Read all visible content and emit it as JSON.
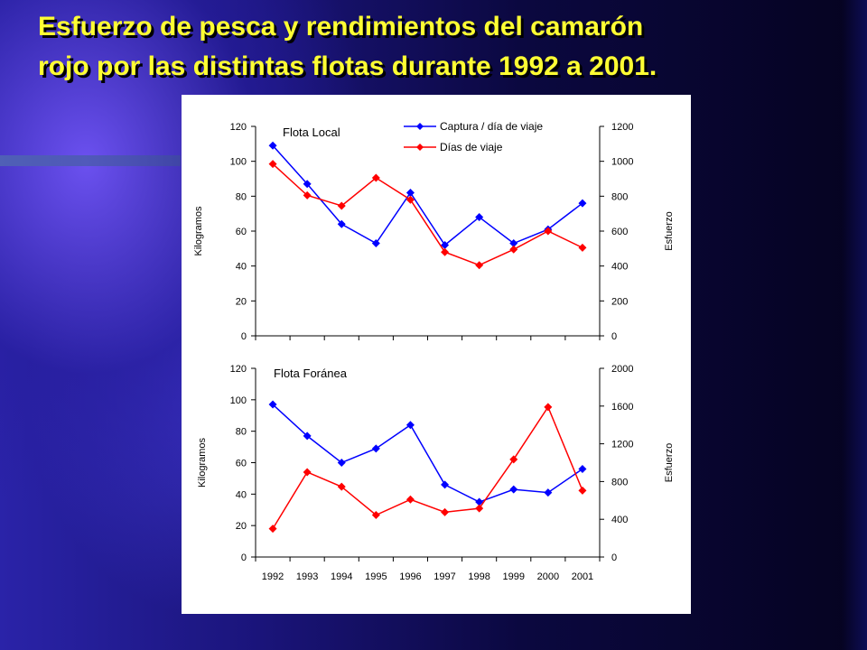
{
  "slide": {
    "title_line1": "Esfuerzo de pesca y rendimientos del camarón",
    "title_line2": "rojo  por las distintas flotas durante 1992 a 2001."
  },
  "chart_data": [
    {
      "type": "line",
      "title": "Flota Local",
      "ylabel": "Kilogramos",
      "y2label": "Esfuerzo",
      "categories": [
        "1992",
        "1993",
        "1994",
        "1995",
        "1996",
        "1997",
        "1998",
        "1999",
        "2000",
        "2001"
      ],
      "ylim": [
        0,
        120
      ],
      "yticks": [
        0,
        20,
        40,
        60,
        80,
        100,
        120
      ],
      "y2lim": [
        0,
        1200
      ],
      "y2ticks": [
        0,
        200,
        400,
        600,
        800,
        1000,
        1200
      ],
      "legend_position": "top-right",
      "series": [
        {
          "name": "Captura / día de viaje",
          "axis": "left",
          "color": "#0000ff",
          "values": [
            109,
            87,
            64,
            53,
            82,
            52,
            68,
            53,
            61,
            76
          ]
        },
        {
          "name": "Días de viaje",
          "axis": "right",
          "color": "#ff0000",
          "values": [
            985,
            805,
            745,
            905,
            780,
            480,
            405,
            495,
            600,
            505
          ]
        }
      ]
    },
    {
      "type": "line",
      "title": "Flota Foránea",
      "ylabel": "Kilogramos",
      "y2label": "Esfuerzo",
      "categories": [
        "1992",
        "1993",
        "1994",
        "1995",
        "1996",
        "1997",
        "1998",
        "1999",
        "2000",
        "2001"
      ],
      "ylim": [
        0,
        120
      ],
      "yticks": [
        0,
        20,
        40,
        60,
        80,
        100,
        120
      ],
      "y2lim": [
        0,
        2000
      ],
      "y2ticks": [
        0,
        400,
        800,
        1200,
        1600,
        2000
      ],
      "show_x_labels": true,
      "series": [
        {
          "name": "Captura / día de viaje",
          "axis": "left",
          "color": "#0000ff",
          "values": [
            97,
            77,
            60,
            69,
            84,
            46,
            35,
            43,
            41,
            56
          ]
        },
        {
          "name": "Días de viaje",
          "axis": "right",
          "color": "#ff0000",
          "values": [
            300,
            900,
            745,
            445,
            610,
            475,
            515,
            1035,
            1590,
            705
          ]
        }
      ]
    }
  ]
}
